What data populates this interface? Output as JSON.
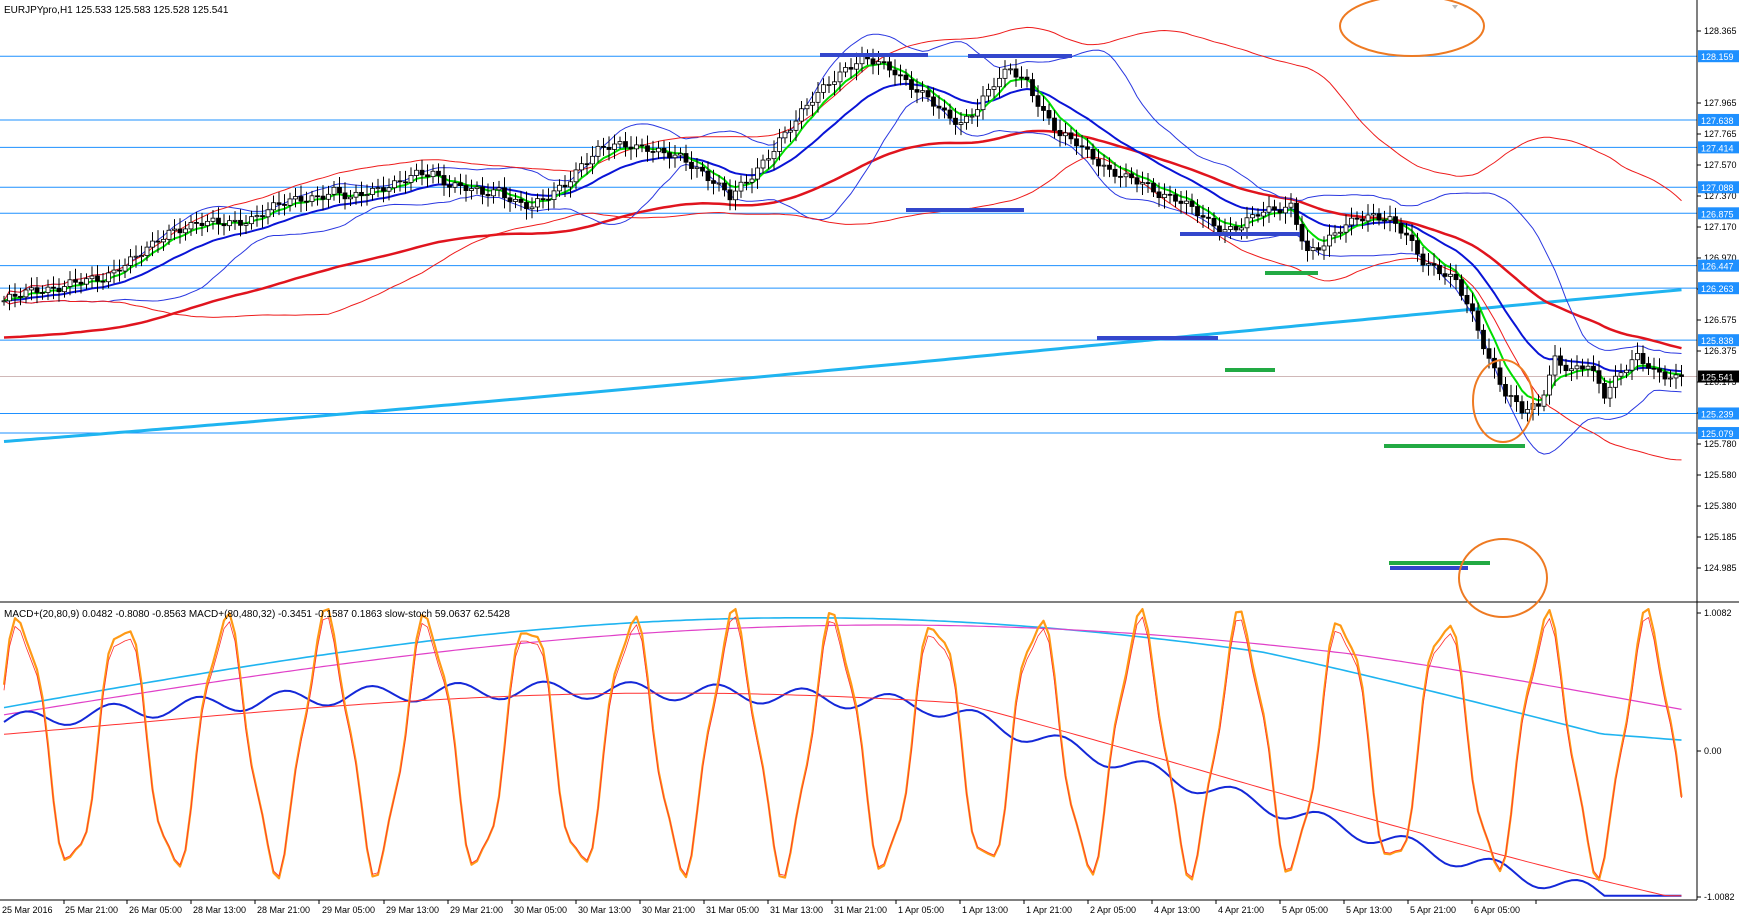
{
  "header": {
    "symbol_line": "EURJPYpro,H1  125.533 125.583 125.528 125.541",
    "indicator_line": "MACD+(20,80,9) 0.0482 -0.8080 -0.8563  MACD+(80,480,32) -0.3451 -0.1587 0.1863  slow-stoch 59.0637 62.5428"
  },
  "colors": {
    "price_line": "#1e90ff",
    "candle": "#000000",
    "ema_fast": "#00dd00",
    "ema_mid": "#0a14d6",
    "ema_slow": "#e0141e",
    "ema_long": "#1fb4f0",
    "bollinger_blue": "#2b38e0",
    "bollinger_red": "#ee1c1c",
    "annotation_blue": "#3347cc",
    "annotation_green": "#22aa44",
    "annotation_orange": "#ee7a22",
    "macd_blue": "#1428d8",
    "macd_red": "#ff3030",
    "stoch_orange": "#ff9a16",
    "macd_slow_cyan": "#1fb4f0",
    "macd_slow_magenta": "#e040c8"
  },
  "price_axis": {
    "ticks": [
      "128.365",
      "127.965",
      "127.765",
      "127.570",
      "127.370",
      "127.170",
      "126.970",
      "126.775",
      "126.575",
      "126.375",
      "126.175",
      "125.980",
      "125.780",
      "125.580",
      "125.380",
      "125.185",
      "124.985"
    ],
    "level_labels": [
      "128.159",
      "127.638",
      "127.414",
      "127.088",
      "126.875",
      "126.447",
      "126.263",
      "125.838",
      "125.239",
      "125.079"
    ],
    "current_price": "125.541"
  },
  "indicator_axis": {
    "ticks": [
      "1.0082",
      "0.00",
      "-1.0082"
    ]
  },
  "time_axis": {
    "labels": [
      "25 Mar 2016",
      "25 Mar 21:00",
      "26 Mar 05:00",
      "28 Mar 13:00",
      "28 Mar 21:00",
      "29 Mar 05:00",
      "29 Mar 13:00",
      "29 Mar 21:00",
      "30 Mar 05:00",
      "30 Mar 13:00",
      "30 Mar 21:00",
      "31 Mar 05:00",
      "31 Mar 13:00",
      "31 Mar 21:00",
      "1 Apr 05:00",
      "1 Apr 13:00",
      "1 Apr 21:00",
      "2 Apr 05:00",
      "4 Apr 13:00",
      "4 Apr 21:00",
      "5 Apr 05:00",
      "5 Apr 13:00",
      "5 Apr 21:00",
      "6 Apr 05:00"
    ]
  },
  "chart_data": {
    "type": "candlestick",
    "symbol": "EURJPYpro",
    "timeframe": "H1",
    "ylim": [
      124.985,
      128.365
    ],
    "close_path": [
      [
        0,
        126.16
      ],
      [
        3,
        126.2
      ],
      [
        6,
        126.25
      ],
      [
        9,
        126.27
      ],
      [
        12,
        126.3
      ],
      [
        15,
        126.31
      ],
      [
        18,
        126.34
      ],
      [
        21,
        126.45
      ],
      [
        24,
        126.52
      ],
      [
        27,
        126.6
      ],
      [
        30,
        126.72
      ],
      [
        33,
        126.78
      ],
      [
        36,
        126.8
      ],
      [
        39,
        126.78
      ],
      [
        42,
        126.8
      ],
      [
        45,
        126.84
      ],
      [
        48,
        126.9
      ],
      [
        51,
        126.95
      ],
      [
        54,
        127.0
      ],
      [
        57,
        127.02
      ],
      [
        60,
        127.05
      ],
      [
        63,
        126.98
      ],
      [
        66,
        127.06
      ],
      [
        69,
        127.1
      ],
      [
        72,
        127.12
      ],
      [
        75,
        127.18
      ],
      [
        78,
        127.21
      ],
      [
        81,
        127.12
      ],
      [
        84,
        127.08
      ],
      [
        87,
        127.02
      ],
      [
        90,
        127.07
      ],
      [
        93,
        126.98
      ],
      [
        96,
        126.92
      ],
      [
        99,
        127.0
      ],
      [
        102,
        127.12
      ],
      [
        105,
        127.28
      ],
      [
        108,
        127.38
      ],
      [
        111,
        127.42
      ],
      [
        114,
        127.44
      ],
      [
        117,
        127.42
      ],
      [
        120,
        127.35
      ],
      [
        123,
        127.32
      ],
      [
        126,
        127.25
      ],
      [
        129,
        127.15
      ],
      [
        132,
        127.0
      ],
      [
        135,
        127.12
      ],
      [
        138,
        127.3
      ],
      [
        141,
        127.48
      ],
      [
        144,
        127.62
      ],
      [
        147,
        127.8
      ],
      [
        150,
        127.96
      ],
      [
        153,
        128.06
      ],
      [
        156,
        128.12
      ],
      [
        159,
        128.1
      ],
      [
        162,
        128.05
      ],
      [
        165,
        127.92
      ],
      [
        168,
        127.8
      ],
      [
        171,
        127.68
      ],
      [
        174,
        127.62
      ],
      [
        177,
        127.75
      ],
      [
        180,
        127.92
      ],
      [
        183,
        128.05
      ],
      [
        186,
        127.96
      ],
      [
        189,
        127.7
      ],
      [
        192,
        127.5
      ],
      [
        195,
        127.45
      ],
      [
        198,
        127.35
      ],
      [
        201,
        127.22
      ],
      [
        204,
        127.15
      ],
      [
        207,
        127.12
      ],
      [
        210,
        127.05
      ],
      [
        213,
        127.0
      ],
      [
        216,
        126.9
      ],
      [
        219,
        126.8
      ],
      [
        222,
        126.75
      ],
      [
        225,
        126.78
      ],
      [
        228,
        126.86
      ],
      [
        231,
        126.9
      ],
      [
        234,
        126.95
      ],
      [
        237,
        126.55
      ],
      [
        240,
        126.6
      ],
      [
        243,
        126.75
      ],
      [
        246,
        126.86
      ],
      [
        249,
        126.85
      ],
      [
        252,
        126.8
      ],
      [
        255,
        126.7
      ],
      [
        258,
        126.5
      ],
      [
        261,
        126.4
      ],
      [
        264,
        126.3
      ],
      [
        267,
        126.05
      ],
      [
        270,
        125.7
      ],
      [
        273,
        125.4
      ],
      [
        276,
        125.25
      ],
      [
        279,
        125.3
      ],
      [
        282,
        125.7
      ],
      [
        285,
        125.58
      ],
      [
        288,
        125.62
      ],
      [
        291,
        125.4
      ],
      [
        294,
        125.6
      ],
      [
        297,
        125.7
      ],
      [
        300,
        125.56
      ],
      [
        303,
        125.54
      ],
      [
        305,
        125.541
      ]
    ],
    "levels": [
      128.159,
      127.638,
      127.414,
      127.088,
      126.875,
      126.447,
      126.263,
      125.838,
      125.239,
      125.079
    ],
    "current_price": 125.541,
    "indicator_ylim": [
      -1.0082,
      1.0082
    ]
  }
}
